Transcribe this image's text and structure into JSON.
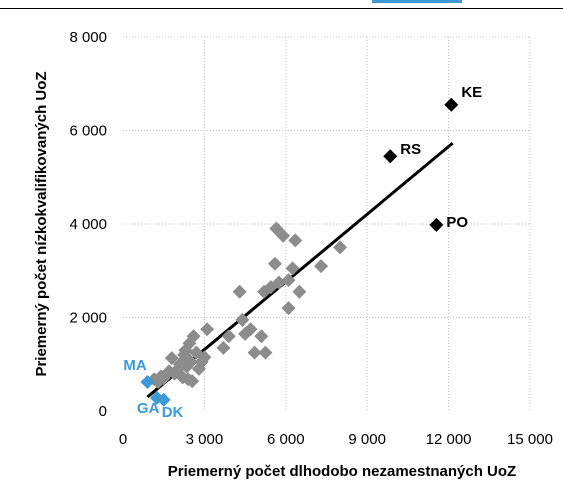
{
  "colors": {
    "gray_points": "#8c8c8c",
    "highlight_points": "#000000",
    "trend_line": "#000000",
    "label_blue": "#3d9ad6",
    "label_black": "#000000",
    "grid": "#bfbfbf"
  },
  "chart_data": {
    "type": "scatter",
    "xlabel": "Priemerný počet dlhodobo nezamestnaných UoZ",
    "ylabel": "Priemerný počet nízkokvalifikovaných UoZ",
    "xlim": [
      0,
      15000
    ],
    "ylim": [
      0,
      8000
    ],
    "x_ticks": [
      0,
      3000,
      6000,
      9000,
      12000,
      15000
    ],
    "x_tick_labels": [
      "0",
      "3 000",
      "6 000",
      "9 000",
      "12 000",
      "15 000"
    ],
    "y_ticks": [
      0,
      2000,
      4000,
      6000,
      8000
    ],
    "y_tick_labels": [
      "0",
      "2 000",
      "4 000",
      "6 000",
      "8 000"
    ],
    "grid": {
      "horizontal": true,
      "vertical": true
    },
    "series": [
      {
        "marker": "diamond",
        "color": "#8c8c8c",
        "points": [
          [
            1150,
            680
          ],
          [
            1300,
            620
          ],
          [
            1400,
            740
          ],
          [
            1500,
            700
          ],
          [
            1700,
            850
          ],
          [
            1800,
            1130
          ],
          [
            1900,
            800
          ],
          [
            2000,
            880
          ],
          [
            2100,
            1000
          ],
          [
            2200,
            720
          ],
          [
            2250,
            1200
          ],
          [
            2300,
            1300
          ],
          [
            2350,
            950
          ],
          [
            2400,
            680
          ],
          [
            2450,
            1450
          ],
          [
            2500,
            1050
          ],
          [
            2550,
            640
          ],
          [
            2600,
            1600
          ],
          [
            2700,
            1250
          ],
          [
            2800,
            900
          ],
          [
            2900,
            1050
          ],
          [
            3100,
            1750
          ],
          [
            3000,
            1150
          ],
          [
            3700,
            1350
          ],
          [
            3900,
            1600
          ],
          [
            4300,
            2550
          ],
          [
            4400,
            1950
          ],
          [
            4500,
            1650
          ],
          [
            4700,
            1750
          ],
          [
            4850,
            1250
          ],
          [
            5100,
            1600
          ],
          [
            5200,
            2550
          ],
          [
            5250,
            1250
          ],
          [
            5450,
            2650
          ],
          [
            5600,
            3150
          ],
          [
            5650,
            3900
          ],
          [
            5750,
            2750
          ],
          [
            5900,
            3750
          ],
          [
            6100,
            2800
          ],
          [
            6250,
            3050
          ],
          [
            6350,
            3650
          ],
          [
            6500,
            2550
          ],
          [
            7300,
            3100
          ],
          [
            8000,
            3500
          ],
          [
            6100,
            2200
          ]
        ]
      },
      {
        "marker": "diamond",
        "color": "#000000",
        "points": [
          {
            "x": 12100,
            "y": 6550,
            "label": "KE"
          },
          {
            "x": 9850,
            "y": 5450,
            "label": "RS"
          },
          {
            "x": 11550,
            "y": 3980,
            "label": "PO"
          }
        ]
      },
      {
        "marker": "diamond",
        "color": "#3d9ad6",
        "points": [
          {
            "x": 900,
            "y": 620,
            "label": "MA"
          },
          {
            "x": 1250,
            "y": 280,
            "label": "GA"
          },
          {
            "x": 1500,
            "y": 240,
            "label": "DK"
          }
        ]
      }
    ],
    "trendline": {
      "x": [
        900,
        12150
      ],
      "y": [
        300,
        5730
      ]
    }
  }
}
